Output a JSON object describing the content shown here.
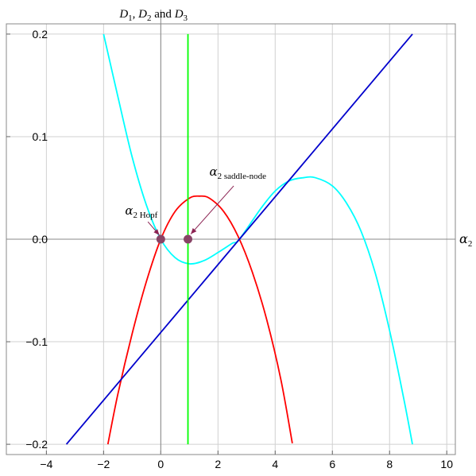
{
  "chart_data": {
    "type": "line",
    "title": {
      "parts": [
        {
          "t": "D",
          "italic": true
        },
        {
          "t": "1",
          "sub": true
        },
        {
          "t": ", ",
          "italic": false
        },
        {
          "t": "D",
          "italic": true
        },
        {
          "t": "2",
          "sub": true
        },
        {
          "t": " and ",
          "italic": false
        },
        {
          "t": "D",
          "italic": true
        },
        {
          "t": "3",
          "sub": true
        }
      ]
    },
    "xlabel": {
      "main": "α",
      "sub": "2"
    },
    "xlim": [
      -5.4,
      10.3
    ],
    "ylim": [
      -0.21,
      0.21
    ],
    "x_ticks": [
      {
        "v": -4,
        "label": "−4"
      },
      {
        "v": -2,
        "label": "−2"
      },
      {
        "v": 0,
        "label": "0"
      },
      {
        "v": 2,
        "label": "2"
      },
      {
        "v": 4,
        "label": "4"
      },
      {
        "v": 6,
        "label": "6"
      },
      {
        "v": 8,
        "label": "8"
      },
      {
        "v": 10,
        "label": "10"
      }
    ],
    "y_ticks": [
      {
        "v": -0.2,
        "label": "−0.2"
      },
      {
        "v": -0.1,
        "label": "−0.1"
      },
      {
        "v": 0.0,
        "label": "0.0"
      },
      {
        "v": 0.1,
        "label": "0.1"
      },
      {
        "v": 0.2,
        "label": "0.2"
      }
    ],
    "grid": true,
    "series": [
      {
        "color": "#ff0000",
        "x": [
          -1.85,
          -1.5,
          -1.0,
          -0.5,
          0.0,
          0.5,
          1.0,
          1.35,
          1.7,
          2.2,
          2.7,
          3.2,
          3.7,
          4.2,
          4.6
        ],
        "y": [
          -0.2,
          -0.151,
          -0.092,
          -0.041,
          0.0,
          0.027,
          0.04,
          0.042,
          0.04,
          0.027,
          0.003,
          -0.032,
          -0.078,
          -0.137,
          -0.199
        ]
      },
      {
        "color": "#00ffff",
        "x": [
          -2.0,
          -1.5,
          -1.0,
          -0.5,
          0.0,
          0.5,
          1.0,
          1.5,
          2.0,
          2.5,
          2.75,
          3.5,
          4.0,
          4.5,
          5.0,
          5.4,
          6.0,
          6.5,
          7.0,
          7.5,
          8.0,
          8.5,
          8.8
        ],
        "y": [
          0.2,
          0.139,
          0.08,
          0.033,
          0.0,
          -0.018,
          -0.024,
          -0.021,
          -0.013,
          -0.004,
          0.0,
          0.03,
          0.047,
          0.057,
          0.06,
          0.06,
          0.052,
          0.035,
          0.008,
          -0.033,
          -0.089,
          -0.156,
          -0.2
        ]
      },
      {
        "color": "#0000cc",
        "x": [
          -3.3,
          8.8
        ],
        "y": [
          -0.2,
          0.2
        ]
      },
      {
        "color": "#00ff00",
        "x": [
          0.95,
          0.95
        ],
        "y": [
          -0.2,
          0.2
        ]
      }
    ],
    "points": [
      {
        "x": 0.0,
        "y": 0.0,
        "color": "#884466"
      },
      {
        "x": 0.95,
        "y": 0.0,
        "color": "#884466"
      }
    ],
    "annotations": [
      {
        "main": "α",
        "sub": "2 Hopf",
        "text_x": -1.25,
        "text_y": 0.024,
        "arrow_from": [
          -0.45,
          0.017
        ],
        "arrow_to": [
          -0.05,
          0.004
        ]
      },
      {
        "main": "α",
        "sub": "2 saddle-node",
        "text_x": 1.7,
        "text_y": 0.062,
        "arrow_from": [
          2.55,
          0.052
        ],
        "arrow_to": [
          1.05,
          0.005
        ]
      }
    ]
  }
}
